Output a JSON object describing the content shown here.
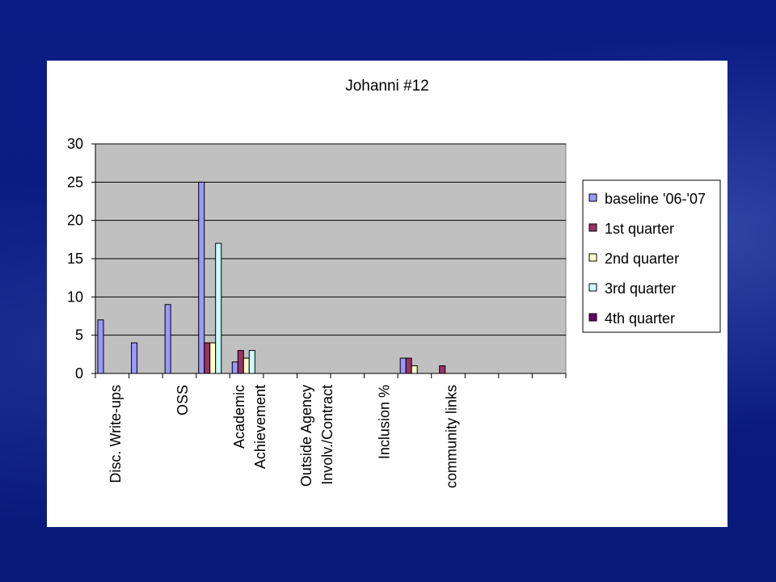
{
  "chart_data": {
    "type": "bar",
    "title": "Johanni #12",
    "xlabel": "",
    "ylabel": "",
    "ylim": [
      0,
      30
    ],
    "yticks": [
      0,
      5,
      10,
      15,
      20,
      25,
      30
    ],
    "grid": true,
    "legend_position": "right",
    "categories": [
      "Disc. Write-ups",
      "",
      "OSS",
      "",
      "Academic Achievement",
      "",
      "Outside Agency Involv./Contract",
      "",
      "Inclusion %",
      "",
      "community links",
      "",
      "",
      ""
    ],
    "category_label_lines": [
      [
        "Disc. Write-ups"
      ],
      [],
      [
        "OSS"
      ],
      [],
      [
        "Academic",
        "Achievement"
      ],
      [],
      [
        "Outside Agency",
        "Involv./Contract"
      ],
      [],
      [
        "Inclusion %"
      ],
      [],
      [
        "community links"
      ],
      [],
      [],
      []
    ],
    "series": [
      {
        "name": "baseline '06-'07",
        "color": "#9999ff",
        "values": [
          7,
          4,
          9,
          25,
          1.5,
          null,
          null,
          null,
          null,
          2,
          null,
          null,
          null,
          null
        ]
      },
      {
        "name": "1st quarter",
        "color": "#993366",
        "values": [
          null,
          null,
          null,
          4,
          3,
          null,
          null,
          null,
          null,
          2,
          1,
          null,
          null,
          null
        ]
      },
      {
        "name": "2nd quarter",
        "color": "#ffffcc",
        "values": [
          null,
          null,
          null,
          4,
          2,
          null,
          null,
          null,
          null,
          1,
          null,
          null,
          null,
          null
        ]
      },
      {
        "name": "3rd quarter",
        "color": "#ccffff",
        "values": [
          null,
          null,
          null,
          17,
          3,
          null,
          null,
          null,
          null,
          null,
          null,
          null,
          null,
          null
        ]
      },
      {
        "name": "4th quarter",
        "color": "#660066",
        "values": [
          null,
          null,
          null,
          null,
          null,
          null,
          null,
          null,
          null,
          null,
          null,
          null,
          null,
          null
        ]
      }
    ],
    "plot_background": "#c0c0c0"
  }
}
